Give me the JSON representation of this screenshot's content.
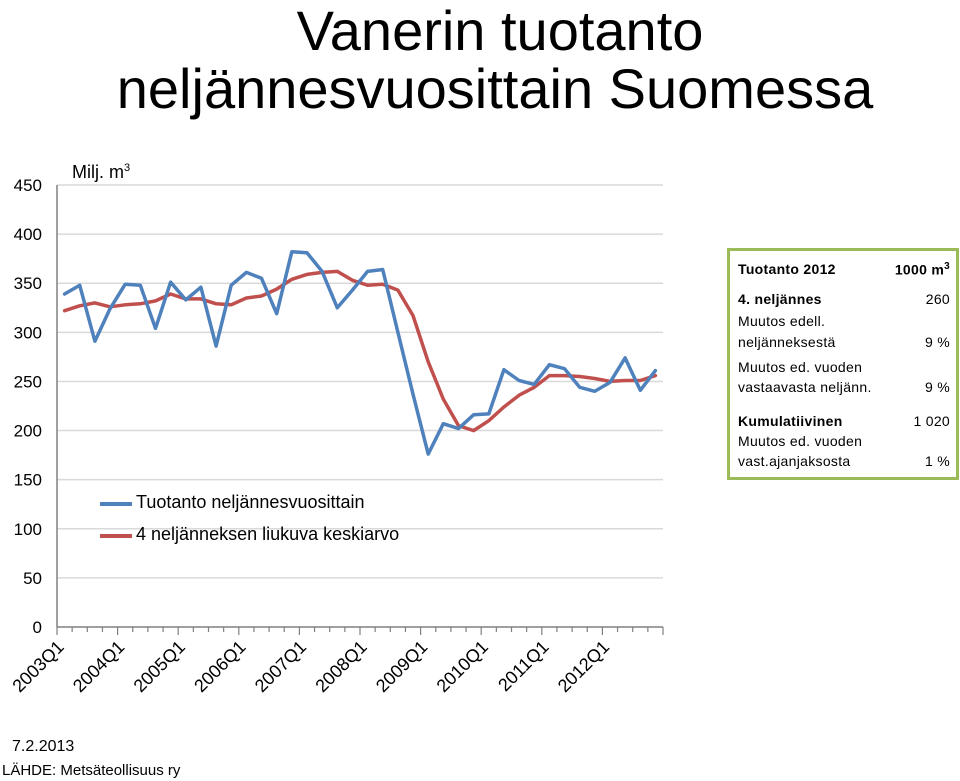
{
  "title": {
    "line1": "Vanerin tuotanto",
    "line2": "neljännesvuosittain Suomessa"
  },
  "unit_label": {
    "text": "Milj. m",
    "sup": "3"
  },
  "infobox": {
    "header": {
      "label": "Tuotanto 2012",
      "unit": "1000 m",
      "unit_sup": "3"
    },
    "q4": {
      "label": "4. neljännes",
      "value": "260"
    },
    "change_prev_1": "Muutos edell.",
    "change_prev_2": "neljänneksestä",
    "change_prev_value": "9 %",
    "change_year_1": "Muutos ed. vuoden",
    "change_year_2": "vastaavasta neljänn.",
    "change_year_value": "9 %",
    "cumulative": {
      "label": "Kumulatiivinen",
      "value": "1 020"
    },
    "cum_change_1": "Muutos ed. vuoden",
    "cum_change_2": "vast.ajanjaksosta",
    "cum_change_value": "1 %"
  },
  "footer": {
    "date": "7.2.2013",
    "source": "LÄHDE: Metsäteollisuus ry"
  },
  "colors": {
    "quarterly": "#4f81bd",
    "moving_avg": "#c0504d",
    "grid": "#d9d9d9",
    "axis": "#808080",
    "box_border": "#9bbb59"
  },
  "chart_data": {
    "type": "line",
    "title": "Vanerin tuotanto neljännesvuosittain Suomessa",
    "ylabel": "Milj. m3",
    "xlabel": "",
    "ylim": [
      0,
      450
    ],
    "yticks": [
      0,
      50,
      100,
      150,
      200,
      250,
      300,
      350,
      400,
      450
    ],
    "grid": true,
    "legend_position": "lower-left",
    "x_tick_labels": [
      "2003Q1",
      "2004Q1",
      "2005Q1",
      "2006Q1",
      "2007Q1",
      "2008Q1",
      "2009Q1",
      "2010Q1",
      "2011Q1",
      "2012Q1"
    ],
    "series": [
      {
        "name": "Tuotanto neljännesvuosittain",
        "color": "#4f81bd",
        "values": [
          339,
          348,
          291,
          324,
          349,
          348,
          304,
          351,
          333,
          346,
          286,
          348,
          361,
          355,
          319,
          382,
          381,
          362,
          325,
          343,
          362,
          364,
          300,
          237,
          176,
          207,
          202,
          216,
          217,
          262,
          251,
          247,
          267,
          263,
          244,
          240,
          249,
          274,
          241,
          261
        ]
      },
      {
        "name": "4 neljänneksen liukuva keskiarvo",
        "color": "#c0504d",
        "values": [
          322,
          327,
          330,
          326,
          328,
          329,
          332,
          339,
          334,
          334,
          329,
          328,
          335,
          337,
          344,
          354,
          359,
          361,
          362,
          353,
          348,
          349,
          343,
          317,
          270,
          232,
          205,
          200,
          210,
          224,
          236,
          244,
          256,
          256,
          255,
          253,
          250,
          251,
          251,
          256
        ]
      }
    ]
  }
}
